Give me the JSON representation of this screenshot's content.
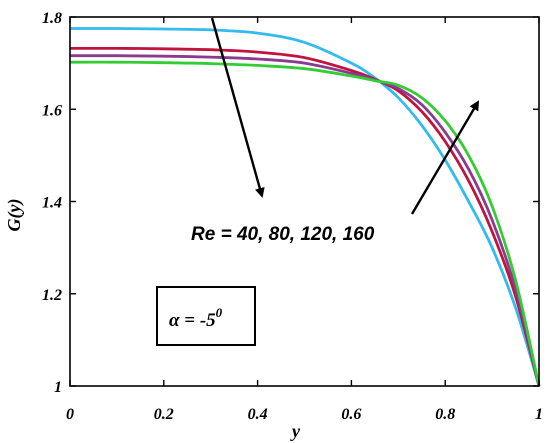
{
  "chart_data": {
    "type": "line",
    "title": "",
    "xlabel": "y",
    "ylabel": "G(y)",
    "xlim": [
      0,
      1
    ],
    "ylim": [
      1,
      1.8
    ],
    "x_ticks": [
      0,
      0.2,
      0.4,
      0.6,
      0.8,
      1
    ],
    "x_tick_labels": [
      "0",
      "0.2",
      "0.4",
      "0.6",
      "0.8",
      "1"
    ],
    "y_ticks": [
      1,
      1.2,
      1.4,
      1.6,
      1.8
    ],
    "y_tick_labels": [
      "1",
      "1.2",
      "1.4",
      "1.6",
      "1.8"
    ],
    "grid": false,
    "x": [
      0,
      0.1,
      0.2,
      0.3,
      0.4,
      0.5,
      0.6,
      0.65,
      0.7,
      0.75,
      0.8,
      0.85,
      0.9,
      0.95,
      1.0
    ],
    "series": [
      {
        "color": "#33bbee",
        "values": [
          1.775,
          1.775,
          1.774,
          1.772,
          1.765,
          1.745,
          1.7,
          1.668,
          1.625,
          1.565,
          1.49,
          1.4,
          1.3,
          1.17,
          1.0
        ]
      },
      {
        "color": "#c0143c",
        "values": [
          1.732,
          1.732,
          1.731,
          1.729,
          1.724,
          1.712,
          1.684,
          1.665,
          1.64,
          1.595,
          1.53,
          1.445,
          1.335,
          1.195,
          1.0
        ]
      },
      {
        "color": "#8b3a8f",
        "values": [
          1.716,
          1.716,
          1.715,
          1.713,
          1.709,
          1.7,
          1.678,
          1.664,
          1.645,
          1.61,
          1.55,
          1.47,
          1.36,
          1.21,
          1.0
        ]
      },
      {
        "color": "#33cc33",
        "values": [
          1.702,
          1.702,
          1.701,
          1.699,
          1.695,
          1.688,
          1.672,
          1.662,
          1.652,
          1.625,
          1.575,
          1.5,
          1.39,
          1.23,
          1.0
        ]
      }
    ],
    "annotations": [
      {
        "text": "Re = 40, 80, 120, 160"
      }
    ],
    "inset_box": {
      "symbol": "α",
      "rest": " = -5",
      "superscript": "0"
    }
  }
}
